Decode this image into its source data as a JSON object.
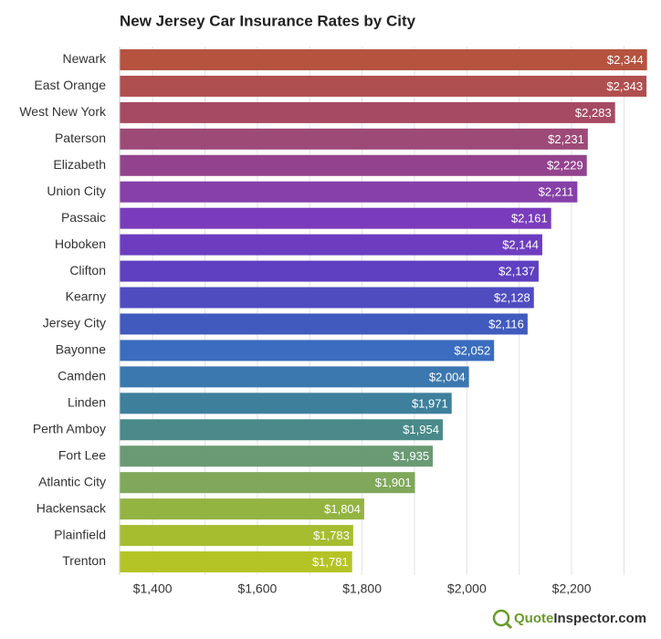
{
  "chart_data": {
    "type": "hbar",
    "title": "New Jersey Car Insurance Rates by City",
    "categories": [
      "Newark",
      "East Orange",
      "West New York",
      "Paterson",
      "Elizabeth",
      "Union City",
      "Passaic",
      "Hoboken",
      "Clifton",
      "Kearny",
      "Jersey City",
      "Bayonne",
      "Camden",
      "Linden",
      "Perth Amboy",
      "Fort Lee",
      "Atlantic City",
      "Hackensack",
      "Plainfield",
      "Trenton"
    ],
    "values": [
      2344,
      2343,
      2283,
      2231,
      2229,
      2211,
      2161,
      2144,
      2137,
      2128,
      2116,
      2052,
      2004,
      1971,
      1954,
      1935,
      1901,
      1804,
      1783,
      1781
    ],
    "value_labels": [
      "$2,344",
      "$2,343",
      "$2,283",
      "$2,231",
      "$2,229",
      "$2,211",
      "$2,161",
      "$2,144",
      "$2,137",
      "$2,128",
      "$2,116",
      "$2,052",
      "$2,004",
      "$1,971",
      "$1,954",
      "$1,935",
      "$1,901",
      "$1,804",
      "$1,783",
      "$1,781"
    ],
    "colors": [
      "#b5533f",
      "#b04f4f",
      "#a64a63",
      "#9d4a77",
      "#93438e",
      "#8640a8",
      "#7a3cbc",
      "#6d3dc0",
      "#5e40c0",
      "#4f4cc0",
      "#415abe",
      "#3a6cbf",
      "#3c78b0",
      "#3e7f9c",
      "#4a8a8a",
      "#6a9a74",
      "#7fa85a",
      "#94b442",
      "#a6bd30",
      "#b5c425"
    ],
    "xlim": [
      1337,
      2355
    ],
    "xticks": [
      {
        "value": 1400,
        "label": "$1,400"
      },
      {
        "value": 1600,
        "label": "$1,600"
      },
      {
        "value": 1800,
        "label": "$1,800"
      },
      {
        "value": 2000,
        "label": "$2,000"
      },
      {
        "value": 2200,
        "label": "$2,200"
      }
    ],
    "minor_gridlines": [
      1500,
      1700,
      1900,
      2100,
      2300
    ],
    "grid": true
  },
  "footer": {
    "brand_first": "Quote",
    "brand_rest": "Inspector.com"
  }
}
